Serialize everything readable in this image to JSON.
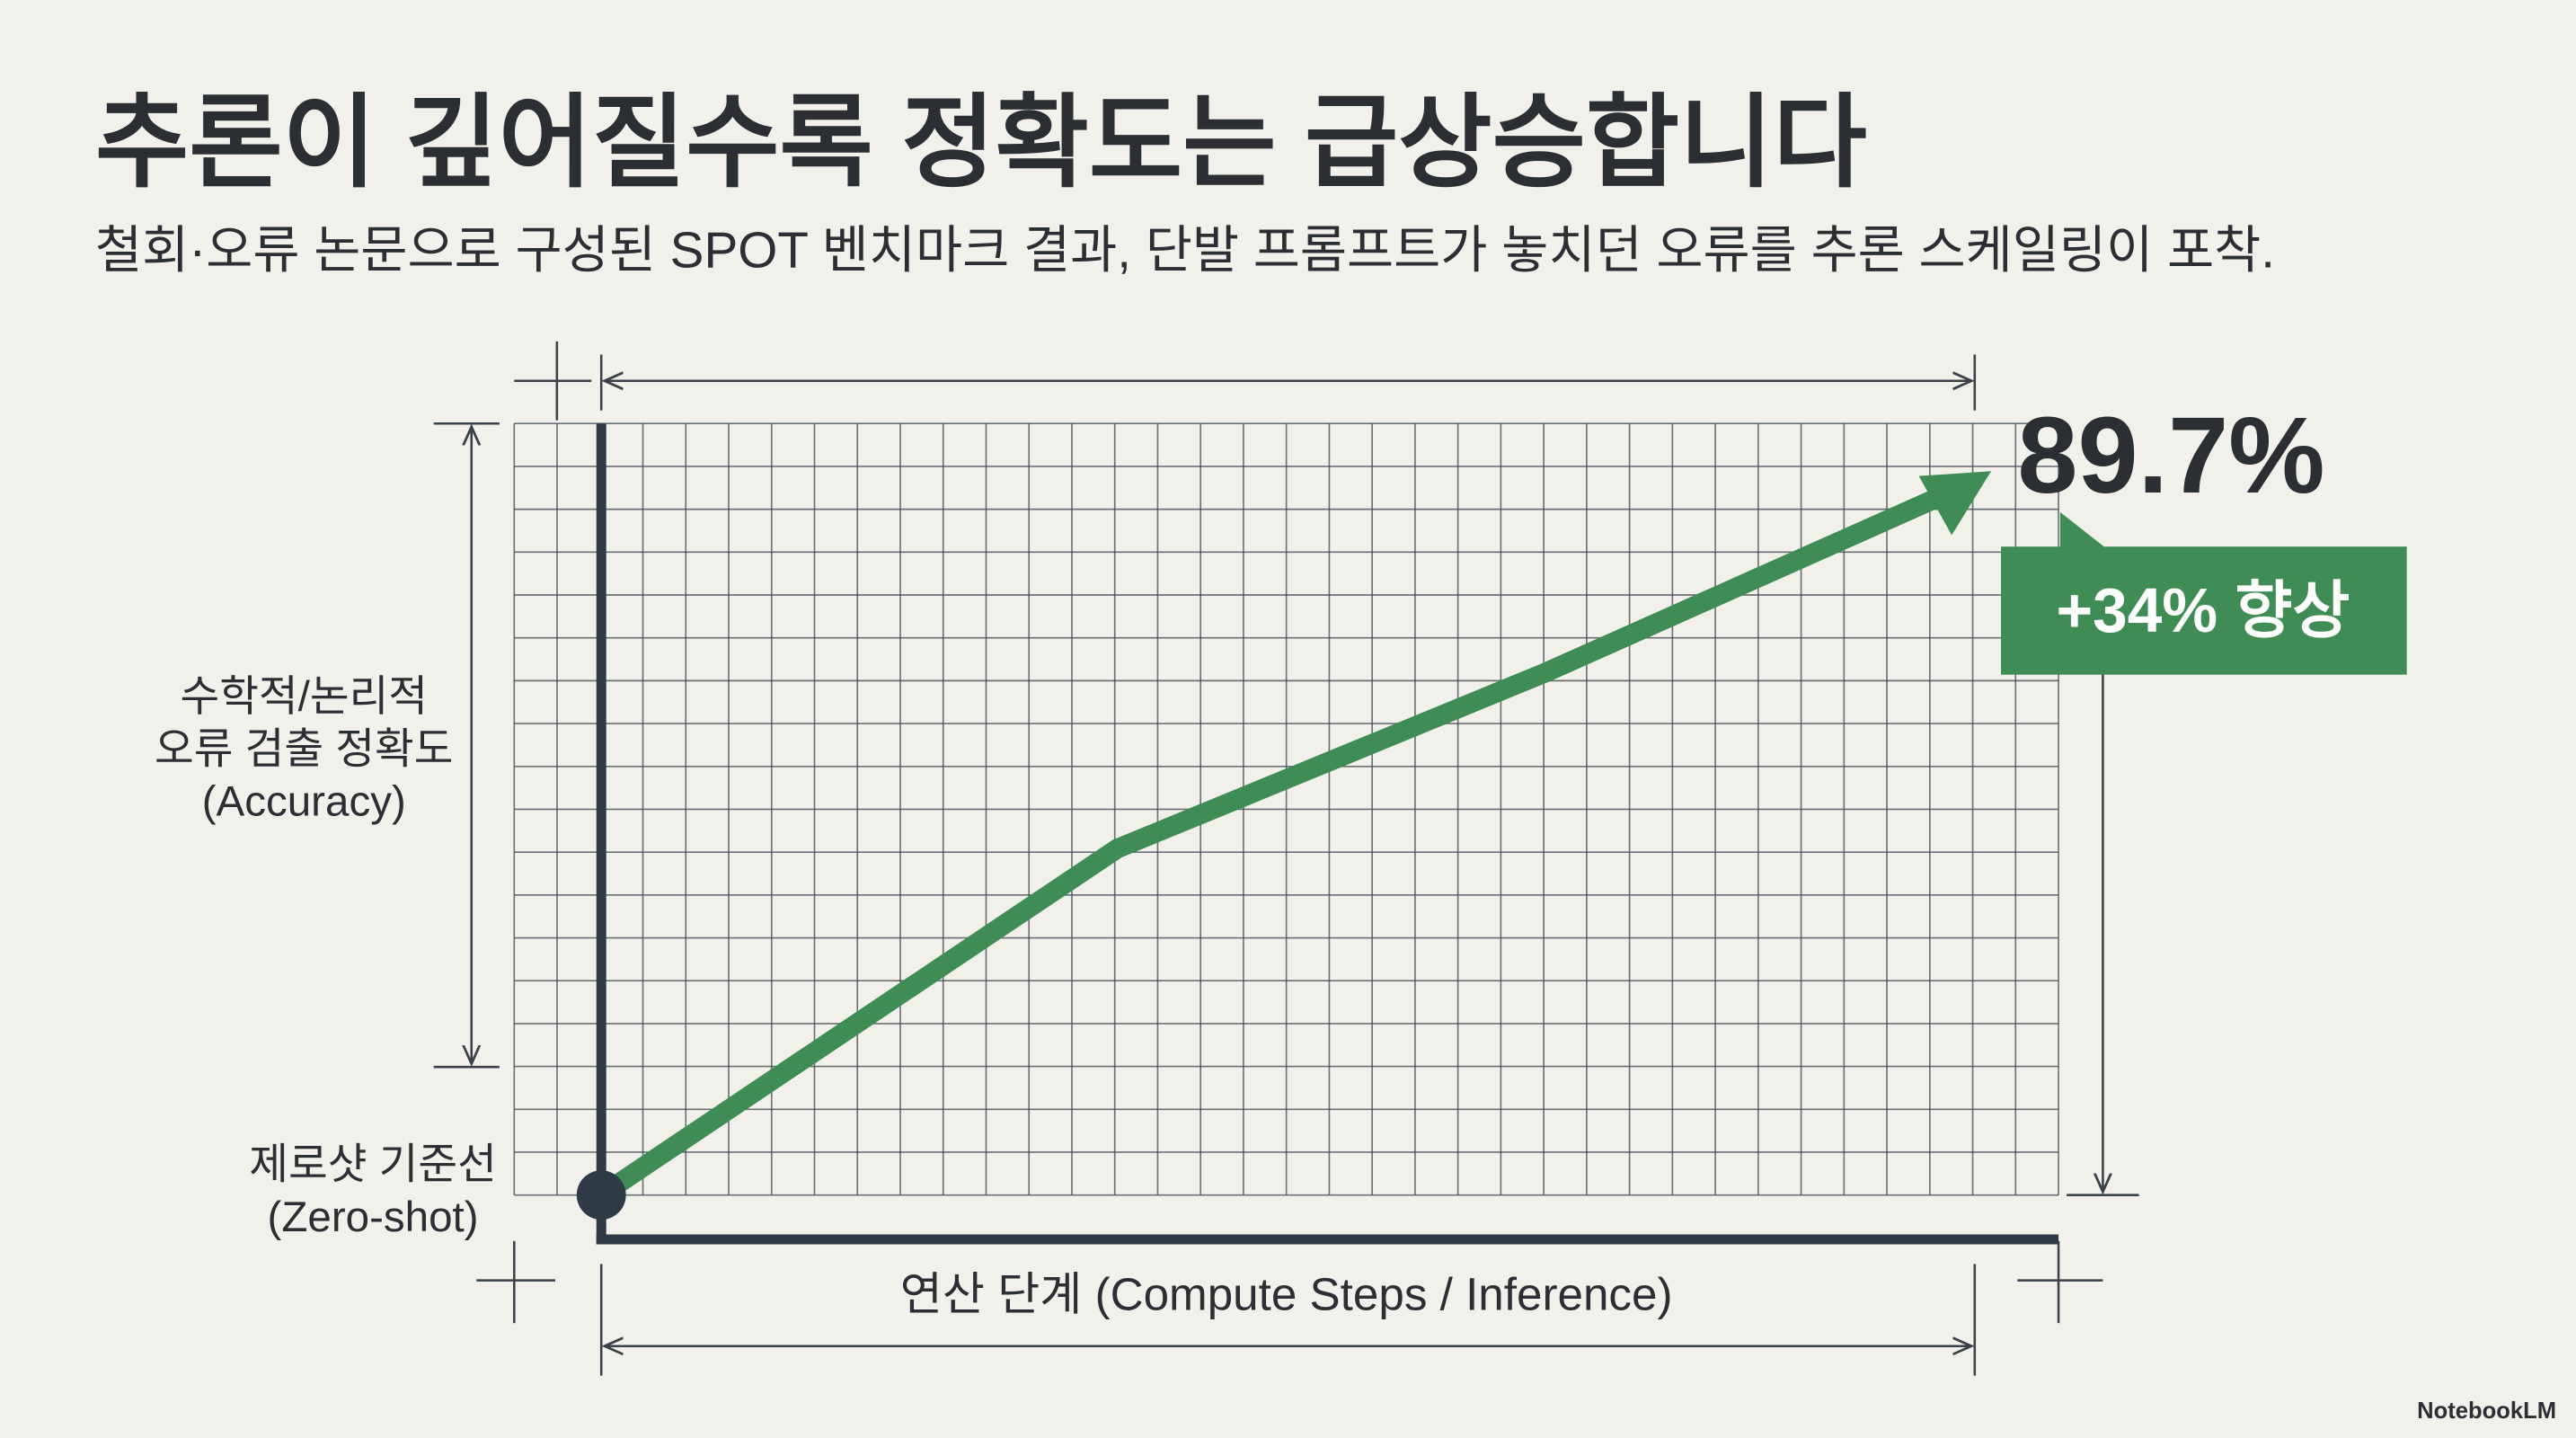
{
  "header": {
    "title": "추론이 깊어질수록 정확도는 급상승합니다",
    "subtitle": "철회·오류 논문으로 구성된 SPOT 벤치마크 결과, 단발 프롬프트가 놓치던 오류를 추론 스케일링이 포착."
  },
  "figure": {
    "y_label": [
      "수학적/논리적",
      "오류 검출 정확도",
      "(Accuracy)"
    ],
    "baseline_label": [
      "제로샷 기준선",
      "(Zero-shot)"
    ],
    "x_label": "연산 단계 (Compute Steps / Inference)",
    "end_value": "89.7%",
    "gain_badge": "+34% 향상"
  },
  "footer": {
    "brand": "NotebookLM"
  }
}
